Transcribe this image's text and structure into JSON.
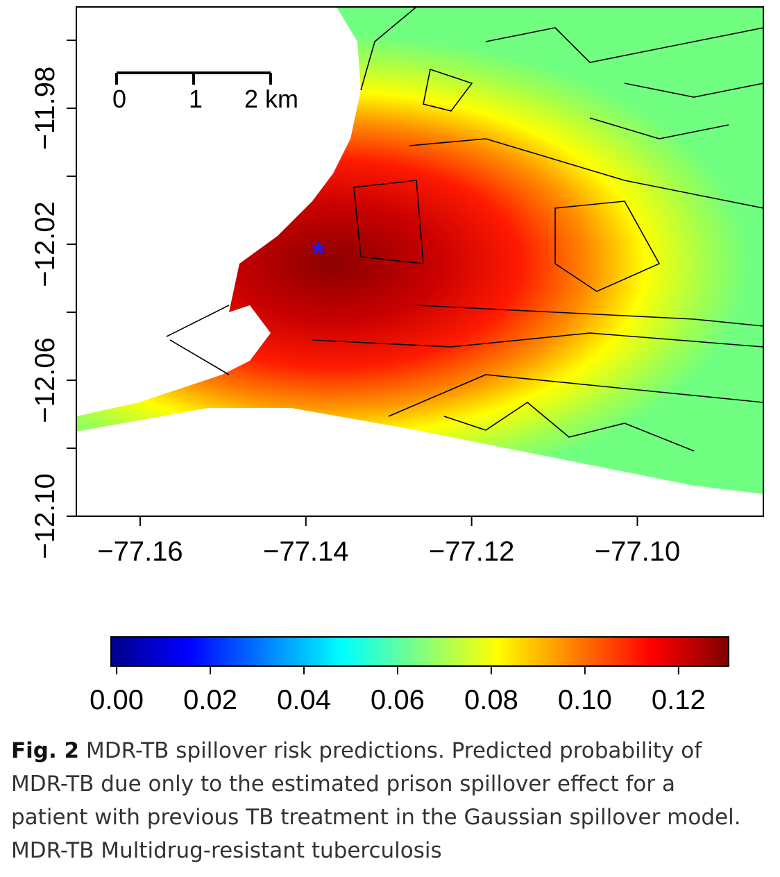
{
  "chart_data": {
    "type": "heatmap",
    "xlim": [
      -77.1677,
      -77.0848
    ],
    "ylim": [
      -12.1,
      -11.9502
    ],
    "xticks": [
      {
        "value": -77.16,
        "label": "−77.16"
      },
      {
        "value": -77.14,
        "label": "−77.14"
      },
      {
        "value": -77.12,
        "label": "−77.12"
      },
      {
        "value": -77.1,
        "label": "−77.10"
      }
    ],
    "yticks": [
      {
        "value": -11.98,
        "label": "−11.98"
      },
      {
        "value": -12.02,
        "label": "−12.02"
      },
      {
        "value": -12.06,
        "label": "−12.06"
      },
      {
        "value": -12.1,
        "label": "−12.10"
      }
    ],
    "yminor_ticks": [
      -11.96,
      -12.0,
      -12.04,
      -12.08
    ],
    "marker": {
      "x": -77.1385,
      "y": -12.0215,
      "symbol": "*",
      "color": "#1a1aff"
    },
    "scale_bar": [
      "0",
      "1",
      "2 km"
    ],
    "colorbar": {
      "lim": [
        -0.0012,
        0.1307
      ],
      "ticks": [
        {
          "value": 0,
          "label": "0.00"
        },
        {
          "value": 0.02,
          "label": "0.02"
        },
        {
          "value": 0.04,
          "label": "0.04"
        },
        {
          "value": 0.06,
          "label": "0.06"
        },
        {
          "value": 0.08,
          "label": "0.08"
        },
        {
          "value": 0.1,
          "label": "0.10"
        },
        {
          "value": 0.12,
          "label": "0.12"
        }
      ],
      "colors": [
        "#00008b",
        "#0000ff",
        "#0080ff",
        "#00ffff",
        "#80ff80",
        "#ffff00",
        "#ff8000",
        "#ff0000",
        "#800000"
      ]
    }
  },
  "caption": {
    "label": "Fig. 2",
    "lines": [
      "MDR-TB spillover risk predictions. Predicted probability of",
      "MDR-TB due only to the estimated prison spillover effect for a",
      "patient with previous TB treatment in the Gaussian spillover model.",
      "MDR-TB Multidrug-resistant tuberculosis"
    ]
  }
}
